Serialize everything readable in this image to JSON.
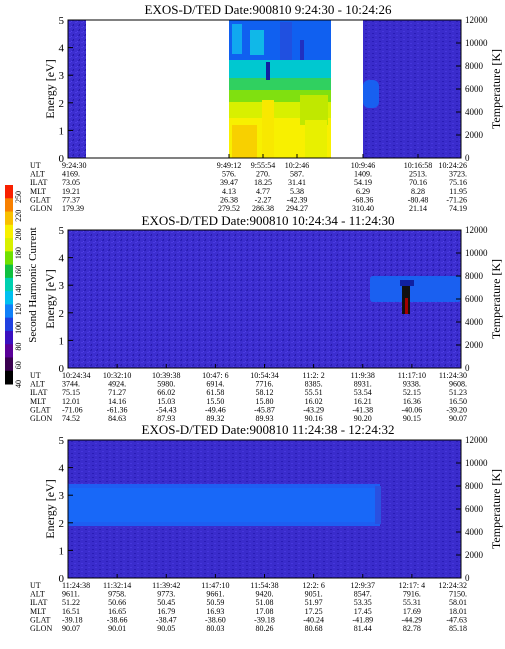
{
  "colorbar": {
    "label": "Second Harmonic Current",
    "ticks": [
      "40",
      "60",
      "80",
      "100",
      "120",
      "140",
      "160",
      "180",
      "200",
      "220",
      "250"
    ],
    "colors": [
      "#000000",
      "#3a0050",
      "#5a0098",
      "#3a10c0",
      "#2040e0",
      "#1080f8",
      "#00c0f0",
      "#00d0b0",
      "#10c040",
      "#70e000",
      "#d8f000",
      "#f8f000",
      "#f8c000",
      "#f88000",
      "#f82000"
    ]
  },
  "chart_data": [
    {
      "type": "heatmap",
      "title": "EXOS-D/TED   Date:900810  9:24:30 - 10:24:26",
      "ylabel": "Energy [eV]",
      "ylabel_right": "Temperature [K]",
      "ylim": [
        0,
        5
      ],
      "ylim_right": [
        0,
        12000
      ],
      "yticks": [
        "0",
        "1",
        "2",
        "3",
        "4",
        "5"
      ],
      "yticks_right": [
        "0",
        "2000",
        "4000",
        "6000",
        "8000",
        "10000",
        "12000"
      ],
      "orbit_labels": [
        "UT",
        "ALT",
        "ILAT",
        "MLT",
        "GLAT",
        "GLON"
      ],
      "orbit_columns": [
        [
          "9:24:30",
          "4169.",
          "73.05",
          "19.21",
          "77.37",
          "179.39"
        ],
        [
          "9:49:12",
          "576.",
          "39.47",
          "4.13",
          "26.38",
          "279.52"
        ],
        [
          "9:55:54",
          "270.",
          "18.25",
          "4.77",
          "-2.27",
          "286.38"
        ],
        [
          "10:2:46",
          "587.",
          "31.41",
          "5.38",
          "-42.39",
          "294.27"
        ],
        [
          "10:9:46",
          "1409.",
          "54.19",
          "6.29",
          "-68.36",
          "310.40"
        ],
        [
          "10:16:58",
          "2513.",
          "70.16",
          "8.28",
          "-80.48",
          "21.14"
        ],
        [
          "10:24:26",
          "3723.",
          "75.16",
          "11.95",
          "-71.26",
          "74.19"
        ]
      ]
    },
    {
      "type": "heatmap",
      "title": "EXOS-D/TED   Date:900810  10:24:34 - 11:24:30",
      "ylabel": "Energy [eV]",
      "ylabel_right": "Temperature [K]",
      "ylim": [
        0,
        5
      ],
      "ylim_right": [
        0,
        12000
      ],
      "yticks": [
        "0",
        "1",
        "2",
        "3",
        "4",
        "5"
      ],
      "yticks_right": [
        "0",
        "2000",
        "4000",
        "6000",
        "8000",
        "10000",
        "12000"
      ],
      "orbit_labels": [
        "UT",
        "ALT",
        "ILAT",
        "MLT",
        "GLAT",
        "GLON"
      ],
      "orbit_columns": [
        [
          "10:24:34",
          "3744.",
          "75.15",
          "12.01",
          "-71.06",
          "74.52"
        ],
        [
          "10:32:10",
          "4924.",
          "71.27",
          "14.16",
          "-61.36",
          "84.63"
        ],
        [
          "10:39:38",
          "5980.",
          "66.02",
          "15.03",
          "-54.43",
          "87.93"
        ],
        [
          "10:47: 6",
          "6914.",
          "61.58",
          "15.50",
          "-49.46",
          "89.32"
        ],
        [
          "10:54:34",
          "7716.",
          "58.12",
          "15.80",
          "-45.87",
          "89.93"
        ],
        [
          "11:2: 2",
          "8385.",
          "55.51",
          "16.02",
          "-43.29",
          "90.16"
        ],
        [
          "11:9:38",
          "8931.",
          "53.54",
          "16.21",
          "-41.38",
          "90.20"
        ],
        [
          "11:17:10",
          "9338.",
          "52.15",
          "16.36",
          "-40.06",
          "90.15"
        ],
        [
          "11:24:30",
          "9608.",
          "51.23",
          "16.50",
          "-39.20",
          "90.07"
        ]
      ]
    },
    {
      "type": "heatmap",
      "title": "EXOS-D/TED   Date:900810  11:24:38 - 12:24:32",
      "ylabel": "Energy [eV]",
      "ylabel_right": "Temperature [K]",
      "ylim": [
        0,
        5
      ],
      "ylim_right": [
        0,
        12000
      ],
      "yticks": [
        "0",
        "1",
        "2",
        "3",
        "4",
        "5"
      ],
      "yticks_right": [
        "0",
        "2000",
        "4000",
        "6000",
        "8000",
        "10000",
        "12000"
      ],
      "orbit_labels": [
        "UT",
        "ALT",
        "ILAT",
        "MLT",
        "GLAT",
        "GLON"
      ],
      "orbit_columns": [
        [
          "11:24:38",
          "9611.",
          "51.22",
          "16.51",
          "-39.18",
          "90.07"
        ],
        [
          "11:32:14",
          "9758.",
          "50.66",
          "16.65",
          "-38.66",
          "90.01"
        ],
        [
          "11:39:42",
          "9773.",
          "50.45",
          "16.79",
          "-38.47",
          "90.05"
        ],
        [
          "11:47:10",
          "9661.",
          "50.59",
          "16.93",
          "-38.60",
          "80.03"
        ],
        [
          "11:54:38",
          "9420.",
          "51.08",
          "17.08",
          "-39.18",
          "80.26"
        ],
        [
          "12:2: 6",
          "9051.",
          "51.97",
          "17.25",
          "-40.24",
          "80.68"
        ],
        [
          "12:9:37",
          "8547.",
          "53.35",
          "17.45",
          "-41.89",
          "81.44"
        ],
        [
          "12:17: 4",
          "7916.",
          "55.31",
          "17.69",
          "-44.29",
          "82.78"
        ],
        [
          "12:24:32",
          "7150.",
          "58.01",
          "18.01",
          "-47.63",
          "85.18"
        ]
      ]
    }
  ]
}
